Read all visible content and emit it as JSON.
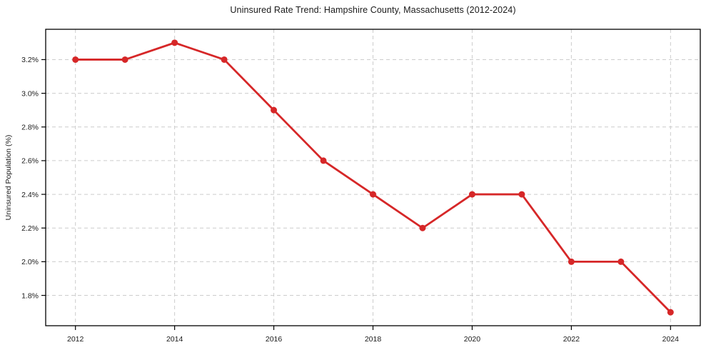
{
  "chart_data": {
    "type": "line",
    "title": "Uninsured Rate Trend: Hampshire County, Massachusetts (2012-2024)",
    "xlabel": "",
    "ylabel": "Uninsured Population (%)",
    "x": [
      2012,
      2013,
      2014,
      2015,
      2016,
      2017,
      2018,
      2019,
      2020,
      2021,
      2022,
      2023,
      2024
    ],
    "values": [
      3.2,
      3.2,
      3.3,
      3.2,
      2.9,
      2.6,
      2.4,
      2.2,
      2.4,
      2.4,
      2.0,
      2.0,
      1.7
    ],
    "x_ticks": [
      2012,
      2014,
      2016,
      2018,
      2020,
      2022,
      2024
    ],
    "x_tick_labels": [
      "2012",
      "2014",
      "2016",
      "2018",
      "2020",
      "2022",
      "2024"
    ],
    "y_ticks": [
      1.8,
      2.0,
      2.2,
      2.4,
      2.6,
      2.8,
      3.0,
      3.2
    ],
    "y_tick_labels": [
      "1.8%",
      "2.0%",
      "2.2%",
      "2.4%",
      "2.6%",
      "2.8%",
      "3.0%",
      "3.2%"
    ],
    "xlim": [
      2011.4,
      2024.6
    ],
    "ylim": [
      1.62,
      3.38
    ],
    "grid": true,
    "grid_style": "dashed",
    "legend_position": "none",
    "line_color": "#d62728",
    "marker": "circle",
    "grid_color": "#cccccc",
    "spine_color": "#000000",
    "background": "#ffffff"
  }
}
